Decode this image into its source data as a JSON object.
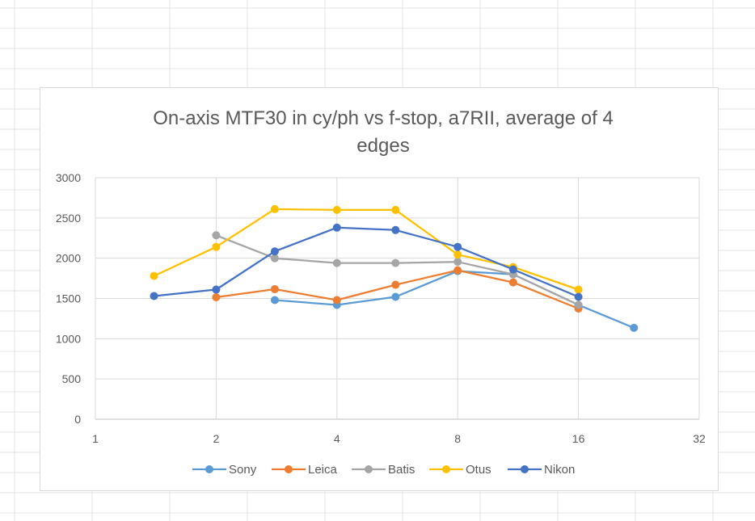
{
  "chart_data": {
    "type": "line",
    "title_lines": [
      "On-axis MTF30 in cy/ph vs f-stop, a7RII, average of 4",
      "edges"
    ],
    "xscale": "log2",
    "xlim": [
      1,
      32
    ],
    "x_ticks": [
      "1",
      "2",
      "4",
      "8",
      "16",
      "32"
    ],
    "ylim": [
      0,
      3000
    ],
    "y_ticks": [
      "0",
      "500",
      "1000",
      "1500",
      "2000",
      "2500",
      "3000"
    ],
    "grid": true,
    "legend_position": "bottom",
    "series": [
      {
        "name": "Sony",
        "color": "#5B9BD5",
        "points": [
          [
            2.8,
            1480
          ],
          [
            4,
            1420
          ],
          [
            5.6,
            1520
          ],
          [
            8,
            1840
          ],
          [
            11,
            1800
          ],
          [
            16,
            1420
          ],
          [
            22,
            1135
          ]
        ]
      },
      {
        "name": "Leica",
        "color": "#ED7D31",
        "points": [
          [
            2,
            1515
          ],
          [
            2.8,
            1615
          ],
          [
            4,
            1480
          ],
          [
            5.6,
            1670
          ],
          [
            8,
            1850
          ],
          [
            11,
            1700
          ],
          [
            16,
            1375
          ]
        ]
      },
      {
        "name": "Batis",
        "color": "#A5A5A5",
        "points": [
          [
            2,
            2285
          ],
          [
            2.8,
            2000
          ],
          [
            4,
            1940
          ],
          [
            5.6,
            1940
          ],
          [
            8,
            1955
          ],
          [
            11,
            1800
          ],
          [
            16,
            1420
          ]
        ]
      },
      {
        "name": "Otus",
        "color": "#FFC000",
        "points": [
          [
            1.4,
            1780
          ],
          [
            2,
            2140
          ],
          [
            2.8,
            2610
          ],
          [
            4,
            2600
          ],
          [
            5.6,
            2600
          ],
          [
            8,
            2045
          ],
          [
            11,
            1890
          ],
          [
            16,
            1610
          ]
        ]
      },
      {
        "name": "Nikon",
        "color": "#4472C4",
        "points": [
          [
            1.4,
            1530
          ],
          [
            2,
            1610
          ],
          [
            2.8,
            2085
          ],
          [
            4,
            2380
          ],
          [
            5.6,
            2350
          ],
          [
            8,
            2140
          ],
          [
            11,
            1860
          ],
          [
            16,
            1520
          ]
        ]
      }
    ]
  }
}
